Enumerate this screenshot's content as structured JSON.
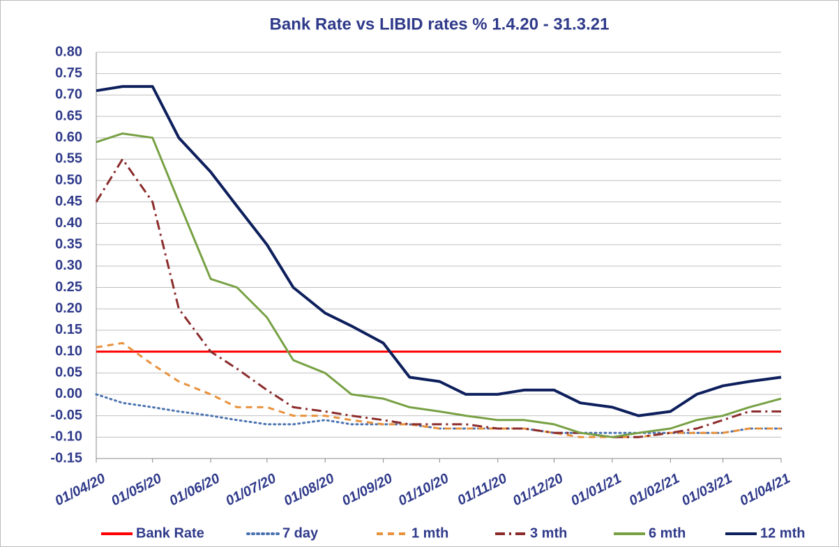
{
  "chart_data": {
    "type": "line",
    "title": "Bank Rate vs LIBID rates % 1.4.20 - 31.3.21",
    "x": [
      "01/04/20",
      "15/04/20",
      "01/05/20",
      "15/05/20",
      "01/06/20",
      "15/06/20",
      "01/07/20",
      "15/07/20",
      "01/08/20",
      "15/08/20",
      "01/09/20",
      "15/09/20",
      "01/10/20",
      "15/10/20",
      "01/11/20",
      "15/11/20",
      "01/12/20",
      "15/12/20",
      "01/01/21",
      "15/01/21",
      "01/02/21",
      "15/02/21",
      "01/03/21",
      "15/03/21",
      "01/04/21"
    ],
    "xlim": [
      "01/04/20",
      "01/04/21"
    ],
    "xticks": [
      "01/04/20",
      "01/05/20",
      "01/06/20",
      "01/07/20",
      "01/08/20",
      "01/09/20",
      "01/10/20",
      "01/11/20",
      "01/12/20",
      "01/01/21",
      "01/02/21",
      "01/03/21",
      "01/04/21"
    ],
    "ylim": [
      -0.15,
      0.8
    ],
    "yticks": [
      {
        "value": 0.8,
        "label": "0.80"
      },
      0.75,
      {
        "value": 0.7,
        "label": "0.70"
      },
      0.65,
      {
        "value": 0.6,
        "label": "0.60"
      },
      0.55,
      {
        "value": 0.5,
        "label": "0.50"
      },
      0.45,
      {
        "value": 0.4,
        "label": "0.40"
      },
      0.35,
      {
        "value": 0.3,
        "label": "0.30"
      },
      0.25,
      {
        "value": 0.2,
        "label": "0.20"
      },
      0.15,
      {
        "value": 0.1,
        "label": "0.10"
      },
      0.05,
      {
        "value": 0,
        "label": "0.00"
      },
      -0.05,
      {
        "value": -0.1,
        "label": "-0.10"
      },
      -0.15
    ],
    "grid": true,
    "legend": "bottom",
    "series": [
      {
        "name": "Bank Rate",
        "color": "#ff0000",
        "line_style": "solid",
        "values": [
          0.1,
          0.1,
          0.1,
          0.1,
          0.1,
          0.1,
          0.1,
          0.1,
          0.1,
          0.1,
          0.1,
          0.1,
          0.1,
          0.1,
          0.1,
          0.1,
          0.1,
          0.1,
          0.1,
          0.1,
          0.1,
          0.1,
          0.1,
          0.1,
          0.1
        ]
      },
      {
        "name": "7 day",
        "color": "#4a72b0",
        "line_style": "dotted",
        "values": [
          0,
          -0.02,
          -0.03,
          -0.04,
          -0.05,
          -0.06,
          -0.07,
          -0.07,
          -0.06,
          -0.07,
          -0.07,
          -0.07,
          -0.08,
          -0.08,
          -0.08,
          -0.08,
          -0.09,
          -0.09,
          -0.09,
          -0.09,
          -0.09,
          -0.09,
          -0.09,
          -0.08,
          -0.08
        ]
      },
      {
        "name": "1 mth",
        "color": "#e8913c",
        "line_style": "dashed",
        "values": [
          0.11,
          0.12,
          0.07,
          0.03,
          0,
          -0.03,
          -0.03,
          -0.05,
          -0.05,
          -0.06,
          -0.07,
          -0.07,
          -0.08,
          -0.08,
          -0.08,
          -0.08,
          -0.09,
          -0.1,
          -0.1,
          -0.1,
          -0.09,
          -0.09,
          -0.09,
          -0.08,
          -0.08
        ]
      },
      {
        "name": "3 mth",
        "color": "#8b2b2b",
        "line_style": "dashdot",
        "values": [
          0.45,
          0.55,
          0.45,
          0.2,
          0.1,
          0.06,
          0.01,
          -0.03,
          -0.04,
          -0.05,
          -0.06,
          -0.07,
          -0.07,
          -0.07,
          -0.08,
          -0.08,
          -0.09,
          -0.09,
          -0.1,
          -0.1,
          -0.09,
          -0.08,
          -0.06,
          -0.04,
          -0.04
        ]
      },
      {
        "name": "6 mth",
        "color": "#77a043",
        "line_style": "solid",
        "values": [
          0.59,
          0.61,
          0.6,
          0.45,
          0.27,
          0.25,
          0.18,
          0.08,
          0.05,
          0,
          -0.01,
          -0.03,
          -0.04,
          -0.05,
          -0.06,
          -0.06,
          -0.07,
          -0.09,
          -0.1,
          -0.09,
          -0.08,
          -0.06,
          -0.05,
          -0.03,
          -0.01
        ]
      },
      {
        "name": "12 mth",
        "color": "#0d1f5c",
        "line_style": "solid",
        "values": [
          0.71,
          0.72,
          0.72,
          0.6,
          0.52,
          0.44,
          0.35,
          0.25,
          0.19,
          0.16,
          0.12,
          0.04,
          0.03,
          0,
          0,
          0.01,
          0.01,
          -0.02,
          -0.03,
          -0.05,
          -0.04,
          0,
          0.02,
          0.03,
          0.04
        ]
      }
    ]
  }
}
